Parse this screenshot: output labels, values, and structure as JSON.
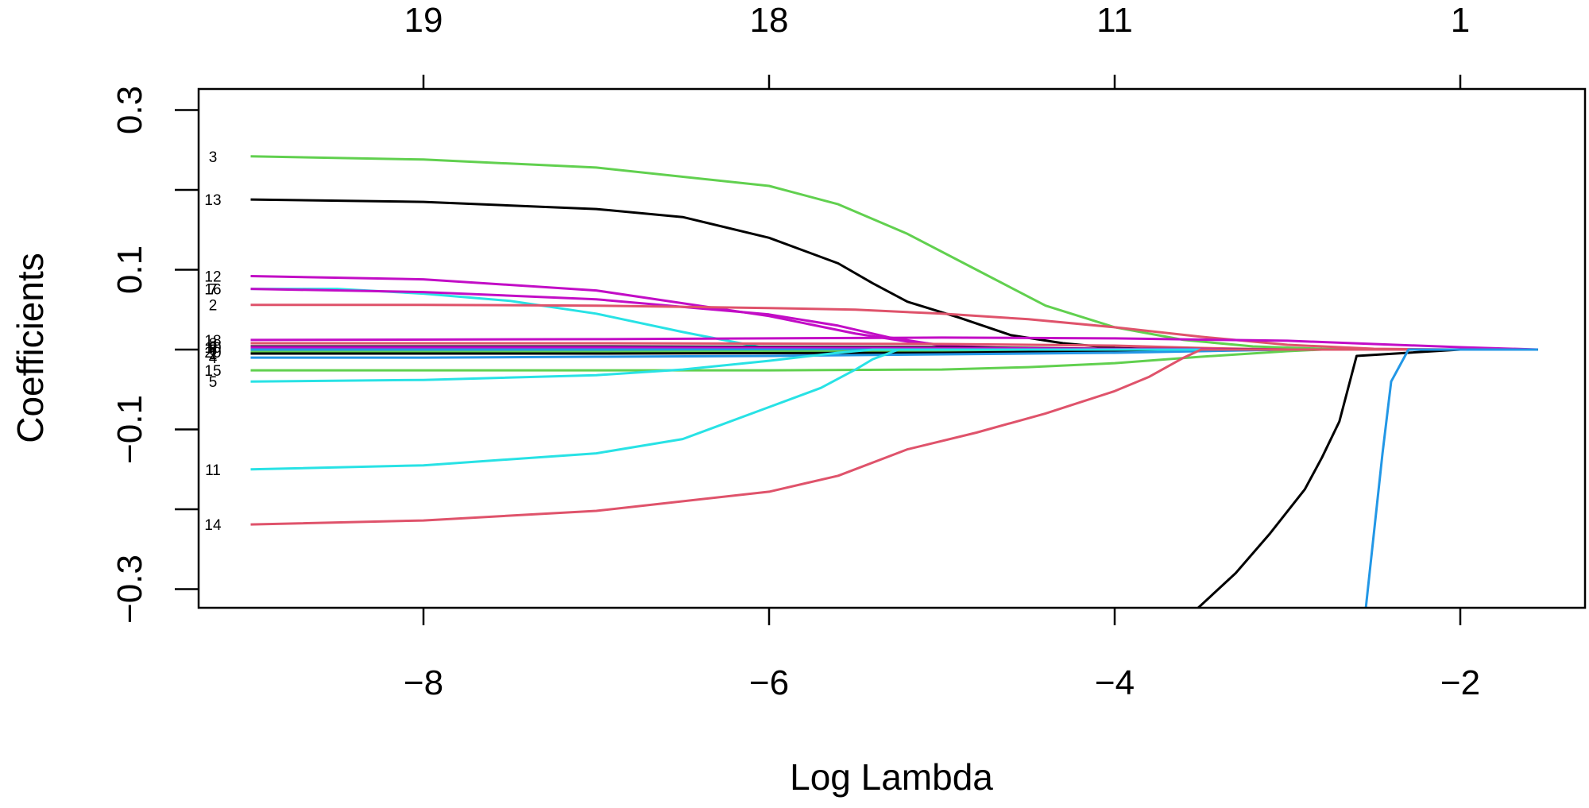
{
  "chart_data": {
    "type": "line",
    "title": "",
    "xlabel": "Log Lambda",
    "ylabel": "Coefficients",
    "xlim": [
      -9.2,
      -1.35
    ],
    "ylim": [
      -0.33,
      0.33
    ],
    "grid": false,
    "x_ticks": [
      -8,
      -6,
      -4,
      -2
    ],
    "x_tick_labels": [
      "−8",
      "−6",
      "−4",
      "−2"
    ],
    "y_ticks": [
      -0.3,
      -0.2,
      -0.1,
      0,
      0.1,
      0.2,
      0.3
    ],
    "y_tick_labels": [
      "−0.3",
      "",
      "−0.1",
      "",
      "0.1",
      "",
      "0.3"
    ],
    "top_axis": {
      "ticks": [
        -8,
        -6,
        -4,
        -2
      ],
      "labels": [
        "19",
        "18",
        "11",
        "1"
      ]
    },
    "series": [
      {
        "name": "3",
        "label": "3",
        "color": "#61D04F",
        "x": [
          -9.0,
          -8.0,
          -7.0,
          -6.0,
          -5.6,
          -5.2,
          -4.8,
          -4.4,
          -4.0,
          -3.6,
          -3.2,
          -2.8,
          -2.4,
          -2.0,
          -1.55
        ],
        "y": [
          0.242,
          0.238,
          0.228,
          0.205,
          0.182,
          0.145,
          0.1,
          0.055,
          0.028,
          0.012,
          0.004,
          0.001,
          0,
          0,
          0
        ]
      },
      {
        "name": "13",
        "label": "13",
        "color": "#000000",
        "x": [
          -9.0,
          -8.0,
          -7.0,
          -6.5,
          -6.0,
          -5.6,
          -5.4,
          -5.2,
          -4.9,
          -4.6,
          -4.3,
          -4.0,
          -3.6,
          -3.2,
          -2.8,
          -2.4,
          -2.0,
          -1.55
        ],
        "y": [
          0.188,
          0.185,
          0.176,
          0.166,
          0.14,
          0.108,
          0.083,
          0.06,
          0.04,
          0.018,
          0.008,
          0.002,
          0,
          0,
          0,
          0,
          0,
          0
        ]
      },
      {
        "name": "12",
        "label": "12",
        "color": "#C20DC6",
        "x": [
          -9.0,
          -8.0,
          -7.0,
          -6.0,
          -5.5,
          -5.2,
          -4.9,
          -4.6,
          -4.0,
          -3.0,
          -2.0,
          -1.55
        ],
        "y": [
          0.092,
          0.088,
          0.074,
          0.042,
          0.02,
          0.01,
          0.004,
          0.002,
          0,
          0,
          0,
          0
        ]
      },
      {
        "name": "16",
        "label": "16",
        "color": "#28E2E5",
        "x": [
          -9.0,
          -8.5,
          -8.0,
          -7.5,
          -7.0,
          -6.5,
          -6.0,
          -5.5,
          -5.0,
          -4.0,
          -3.0,
          -1.55
        ],
        "y": [
          0.076,
          0.076,
          0.07,
          0.061,
          0.045,
          0.022,
          0.001,
          0,
          0,
          0,
          0,
          0
        ]
      },
      {
        "name": "7",
        "label": "7",
        "color": "#C20DC6",
        "x": [
          -9.0,
          -8.0,
          -7.0,
          -6.0,
          -5.6,
          -5.3,
          -5.0,
          -4.8,
          -4.0,
          -3.0,
          -1.55
        ],
        "y": [
          0.076,
          0.072,
          0.063,
          0.044,
          0.03,
          0.015,
          0.005,
          0.001,
          0,
          0,
          0
        ]
      },
      {
        "name": "2",
        "label": "2",
        "color": "#DF536B",
        "x": [
          -9.0,
          -8.0,
          -7.0,
          -6.0,
          -5.5,
          -5.0,
          -4.5,
          -4.0,
          -3.5,
          -3.0,
          -2.5,
          -2.0,
          -1.55
        ],
        "y": [
          0.056,
          0.056,
          0.055,
          0.052,
          0.05,
          0.045,
          0.038,
          0.028,
          0.016,
          0.006,
          0.001,
          0,
          0
        ]
      },
      {
        "name": "18",
        "label": "18",
        "color": "#C20DC6",
        "x": [
          -9.0,
          -7.0,
          -5.0,
          -4.0,
          -3.0,
          -2.5,
          -2.0,
          -1.55
        ],
        "y": [
          0.012,
          0.013,
          0.015,
          0.014,
          0.011,
          0.007,
          0.003,
          0
        ]
      },
      {
        "name": "8",
        "label": "8",
        "color": "#DF536B",
        "x": [
          -9.0,
          -7.0,
          -5.0,
          -4.0,
          -3.5,
          -3.0,
          -1.55
        ],
        "y": [
          0.008,
          0.008,
          0.007,
          0.005,
          0.002,
          0,
          0
        ]
      },
      {
        "name": "9",
        "label": "9",
        "color": "#000000",
        "x": [
          -9.0,
          -7.0,
          -5.0,
          -4.0,
          -3.0,
          -1.55
        ],
        "y": [
          0.004,
          0.004,
          0.003,
          0.001,
          0,
          0
        ]
      },
      {
        "name": "10",
        "label": "10",
        "color": "#C20DC6",
        "x": [
          -9.0,
          -7.0,
          -5.0,
          -4.0,
          -3.0,
          -1.55
        ],
        "y": [
          0.003,
          0.003,
          0.002,
          0.001,
          0,
          0
        ]
      },
      {
        "name": "6",
        "label": "6",
        "color": "#2297E6",
        "x": [
          -9.0,
          -7.0,
          -5.0,
          -4.0,
          -3.0,
          -1.55
        ],
        "y": [
          0.0,
          0.0,
          0.0,
          0.0,
          0.0,
          0.0
        ]
      },
      {
        "name": "20",
        "label": "20",
        "color": "#61D04F",
        "x": [
          -9.0,
          -7.0,
          -5.0,
          -4.0,
          -3.0,
          -1.55
        ],
        "y": [
          -0.003,
          -0.003,
          -0.002,
          -0.001,
          0,
          0
        ]
      },
      {
        "name": "1",
        "label": "1",
        "color": "#000000",
        "x": [
          -9.0,
          -7.0,
          -5.0,
          -4.0,
          -3.0,
          -1.55
        ],
        "y": [
          -0.005,
          -0.005,
          -0.004,
          -0.002,
          0,
          0
        ]
      },
      {
        "name": "4",
        "label": "4",
        "color": "#2297E6",
        "x": [
          -9.0,
          -8.0,
          -7.0,
          -6.0,
          -5.0,
          -4.0,
          -3.5,
          -3.0,
          -1.55
        ],
        "y": [
          -0.01,
          -0.01,
          -0.009,
          -0.008,
          -0.006,
          -0.004,
          -0.002,
          0,
          0
        ]
      },
      {
        "name": "15",
        "label": "15",
        "color": "#61D04F",
        "x": [
          -9.0,
          -8.0,
          -7.0,
          -6.0,
          -5.0,
          -4.5,
          -4.0,
          -3.5,
          -3.0,
          -2.8,
          -1.55
        ],
        "y": [
          -0.026,
          -0.026,
          -0.026,
          -0.026,
          -0.025,
          -0.022,
          -0.017,
          -0.009,
          -0.002,
          0,
          0
        ]
      },
      {
        "name": "5",
        "label": "5",
        "color": "#28E2E5",
        "x": [
          -9.0,
          -8.0,
          -7.0,
          -6.5,
          -6.0,
          -5.6,
          -5.4,
          -4.0,
          -1.55
        ],
        "y": [
          -0.04,
          -0.038,
          -0.032,
          -0.025,
          -0.014,
          -0.004,
          0,
          0,
          0
        ]
      },
      {
        "name": "11",
        "label": "11",
        "color": "#28E2E5",
        "x": [
          -9.0,
          -8.0,
          -7.0,
          -6.5,
          -6.0,
          -5.7,
          -5.5,
          -5.4,
          -5.25,
          -4.0,
          -1.55
        ],
        "y": [
          -0.15,
          -0.145,
          -0.13,
          -0.112,
          -0.072,
          -0.048,
          -0.025,
          -0.012,
          0,
          0,
          0
        ]
      },
      {
        "name": "14",
        "label": "14",
        "color": "#DF536B",
        "x": [
          -9.0,
          -8.0,
          -7.0,
          -6.0,
          -5.6,
          -5.2,
          -4.8,
          -4.4,
          -4.0,
          -3.8,
          -3.6,
          -3.5,
          -1.55
        ],
        "y": [
          -0.219,
          -0.214,
          -0.202,
          -0.178,
          -0.158,
          -0.125,
          -0.104,
          -0.08,
          -0.052,
          -0.034,
          -0.01,
          0,
          0
        ]
      },
      {
        "name": "17",
        "label": "",
        "color": "#000000",
        "x": [
          -3.55,
          -3.3,
          -3.1,
          -2.9,
          -2.8,
          -2.7,
          -2.6,
          -2.0,
          -1.55
        ],
        "y": [
          -0.33,
          -0.28,
          -0.23,
          -0.175,
          -0.135,
          -0.09,
          -0.008,
          0,
          0
        ]
      },
      {
        "name": "19",
        "label": "",
        "color": "#2297E6",
        "x": [
          -2.55,
          -2.45,
          -2.4,
          -2.3,
          -2.0,
          -1.55
        ],
        "y": [
          -0.33,
          -0.13,
          -0.04,
          0,
          0,
          0
        ]
      }
    ]
  }
}
